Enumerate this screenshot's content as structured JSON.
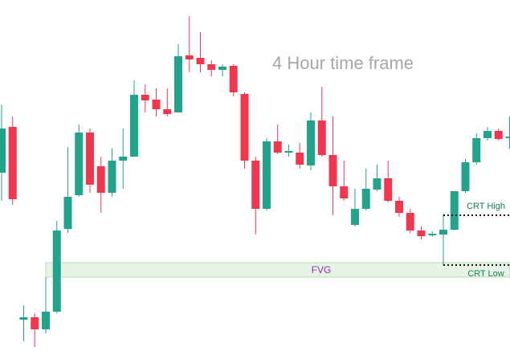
{
  "chart_data": {
    "type": "candlestick",
    "title": "4 Hour time frame",
    "up_color": "#22a48c",
    "down_color": "#f0374d",
    "ylim": [
      0,
      437
    ],
    "open": [
      222,
      279,
      39,
      42,
      27,
      49,
      152,
      194,
      272,
      230,
      197,
      237,
      242,
      319,
      313,
      301,
      297,
      368,
      365,
      357,
      350,
      355,
      320,
      237,
      177,
      261,
      247,
      247,
      231,
      287,
      244,
      205,
      157,
      177,
      201,
      215,
      187,
      172,
      150,
      144,
      145,
      151,
      199,
      235,
      265,
      274,
      265
    ],
    "high": [
      307,
      292,
      57,
      47,
      92,
      162,
      254,
      282,
      277,
      242,
      252,
      277,
      337,
      332,
      327,
      327,
      382,
      417,
      397,
      362,
      357,
      357,
      322,
      242,
      265,
      282,
      257,
      259,
      297,
      329,
      292,
      237,
      202,
      227,
      232,
      237,
      192,
      177,
      155,
      149,
      171,
      199,
      239,
      271,
      279,
      277,
      292
    ],
    "low": [
      187,
      182,
      12,
      5,
      22,
      47,
      147,
      192,
      197,
      172,
      192,
      202,
      242,
      297,
      292,
      292,
      297,
      347,
      347,
      342,
      342,
      317,
      227,
      145,
      175,
      245,
      242,
      227,
      225,
      242,
      169,
      187,
      155,
      175,
      199,
      185,
      167,
      147,
      139,
      142,
      107,
      150,
      197,
      232,
      262,
      262,
      252
    ],
    "close": [
      277,
      189,
      42,
      27,
      49,
      150,
      192,
      272,
      207,
      197,
      237,
      242,
      319,
      312,
      301,
      295,
      367,
      363,
      357,
      350,
      354,
      322,
      237,
      177,
      261,
      247,
      249,
      232,
      287,
      244,
      205,
      190,
      177,
      202,
      215,
      187,
      172,
      150,
      143,
      146,
      151,
      199,
      235,
      265,
      274,
      264,
      267
    ],
    "fvg": {
      "label": "FVG",
      "low": 92,
      "high": 110,
      "fill": "#e6f4e6",
      "stroke": "#b7dcb7",
      "label_color": "#9c27b0"
    },
    "levels": [
      {
        "label": "CRT High",
        "value": 169
      },
      {
        "label": "CRT Low",
        "value": 107
      }
    ],
    "level_label_color": "#1b7a5a"
  }
}
